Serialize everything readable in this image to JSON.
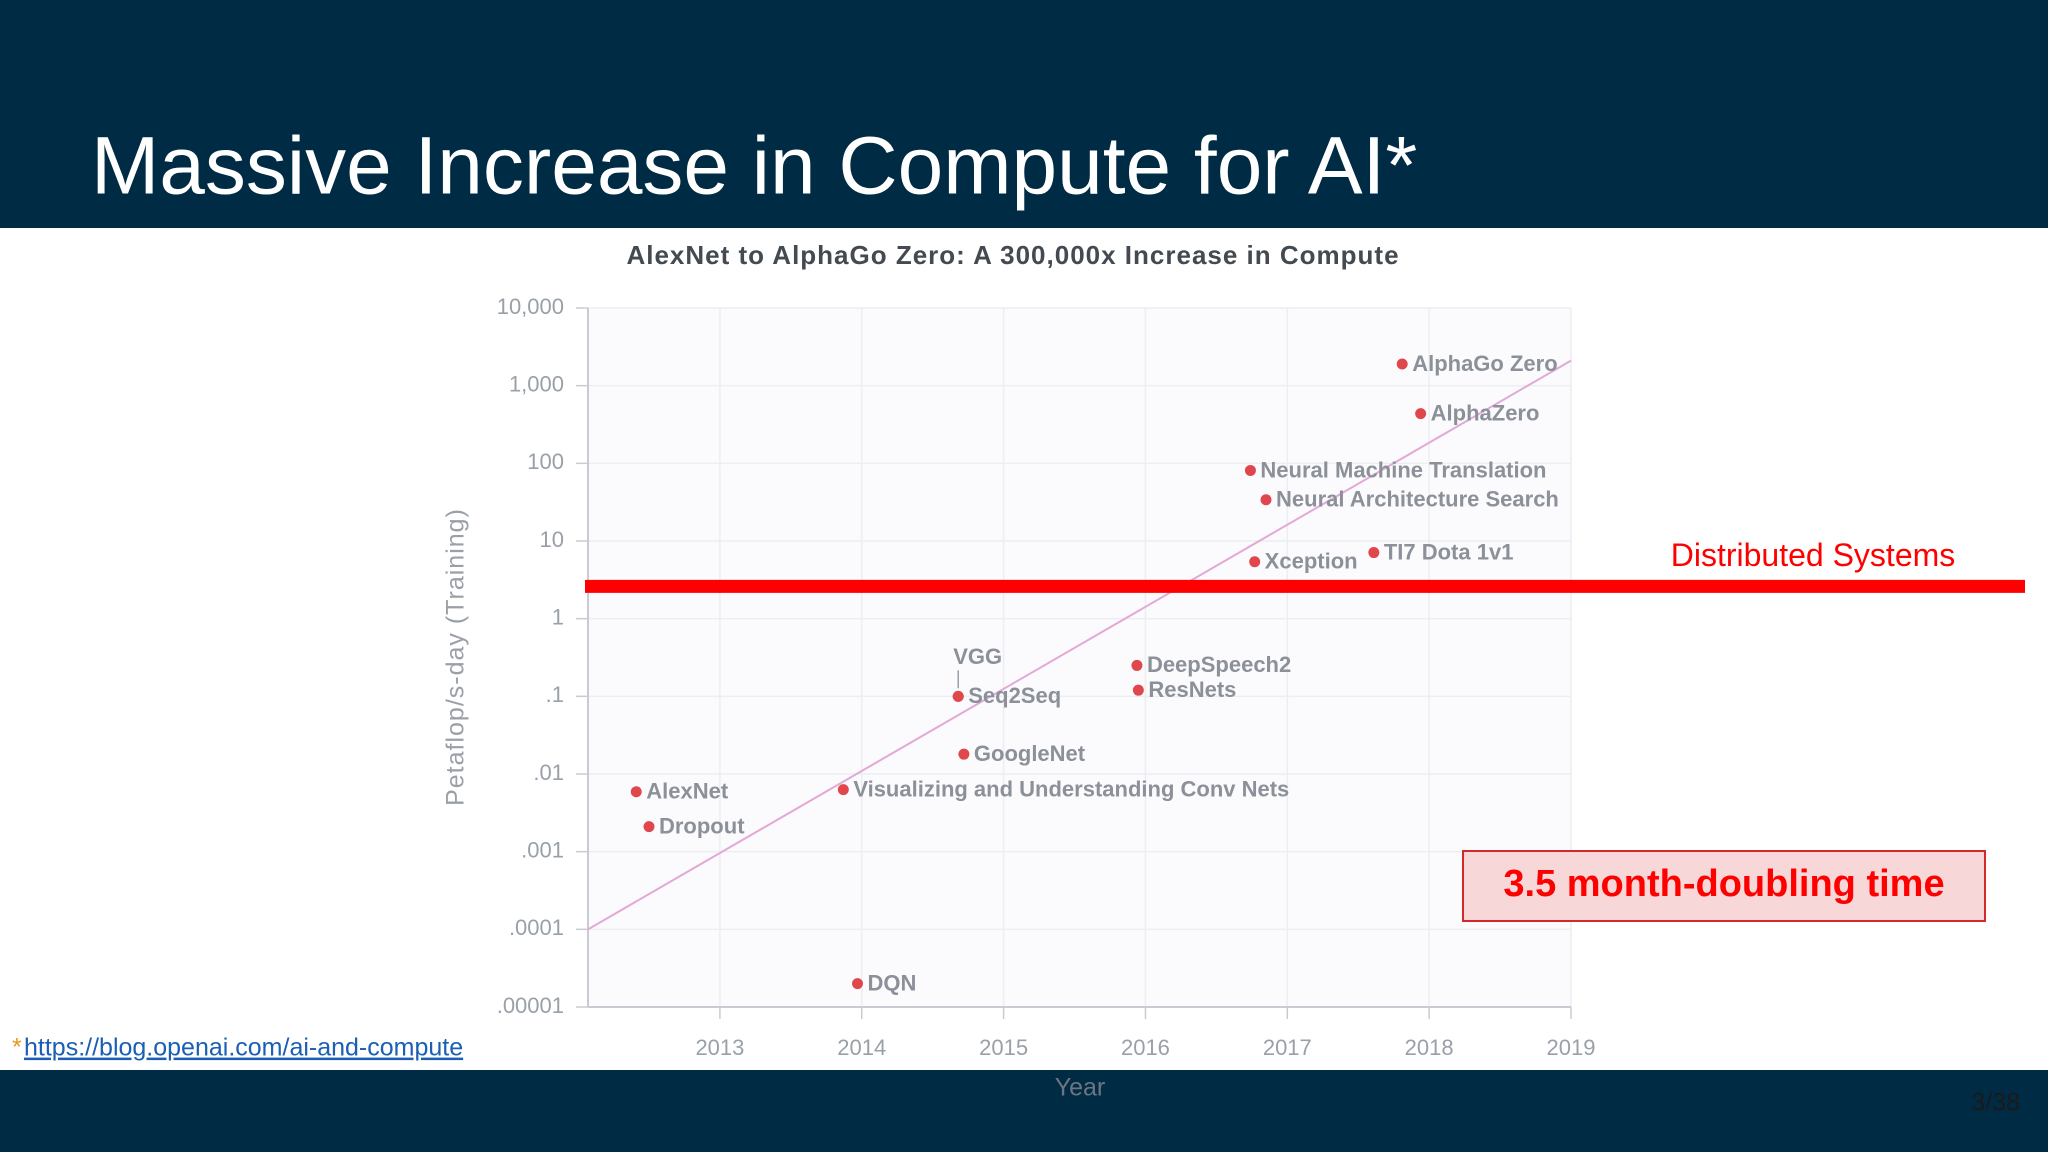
{
  "slide_title": "Massive Increase in Compute for AI*",
  "footnote_marker": "*",
  "link": "https://blog.openai.com/ai-and-compute",
  "page_number": "3/38",
  "chart_data": {
    "type": "scatter",
    "title": "AlexNet to AlphaGo Zero: A 300,000x Increase in Compute",
    "xlabel": "Year",
    "ylabel": "Petaflop/s-day (Training)",
    "log_y": true,
    "grid": true,
    "color": "#e0474c",
    "labels": [
      "AlexNet",
      "Dropout",
      "DQN",
      "Visualizing and Understanding Conv Nets",
      "GoogleNet",
      "Seq2Seq",
      "VGG",
      "DeepSpeech2",
      "ResNets",
      "Xception",
      "TI7 Dota 1v1",
      "Neural Architecture Search",
      "Neural Machine Translation",
      "AlphaZero",
      "AlphaGo Zero"
    ],
    "x": [
      2012.41,
      2012.5,
      2013.97,
      2013.87,
      2014.72,
      2014.68,
      2014.68,
      2015.94,
      2015.95,
      2016.77,
      2017.61,
      2016.85,
      2016.74,
      2017.94,
      2017.81
    ],
    "values": [
      0.0059,
      0.0021,
      2e-05,
      0.0063,
      0.018,
      0.1,
      0.1,
      0.25,
      0.12,
      5.4,
      7.1,
      34,
      81,
      436,
      1900
    ],
    "trend": {
      "color": "#e3a9d6",
      "x": [
        2012.07,
        2019
      ],
      "values": [
        0.0001,
        2100
      ]
    },
    "xlim": [
      2012.07,
      2019
    ],
    "xticks": [
      2013,
      2014,
      2015,
      2016,
      2017,
      2018,
      2019
    ],
    "ylim": [
      1e-05,
      10000
    ],
    "yticks": [
      {
        "value": 10000,
        "label": "10,000"
      },
      {
        "value": 1000,
        "label": "1,000"
      },
      100,
      10,
      1,
      {
        "value": 0.1,
        "label": ".1"
      },
      {
        "value": 0.01,
        "label": ".01"
      },
      {
        "value": 0.001,
        "label": ".001"
      },
      {
        "value": 0.0001,
        "label": ".0001"
      },
      {
        "value": 1e-05,
        "label": ".00001"
      }
    ],
    "annotations": [
      {
        "text": "Distributed Systems",
        "value": 2.6,
        "color": "#ff0000"
      },
      {
        "text": "3.5 month-doubling time",
        "color": "#ff0000"
      }
    ]
  }
}
